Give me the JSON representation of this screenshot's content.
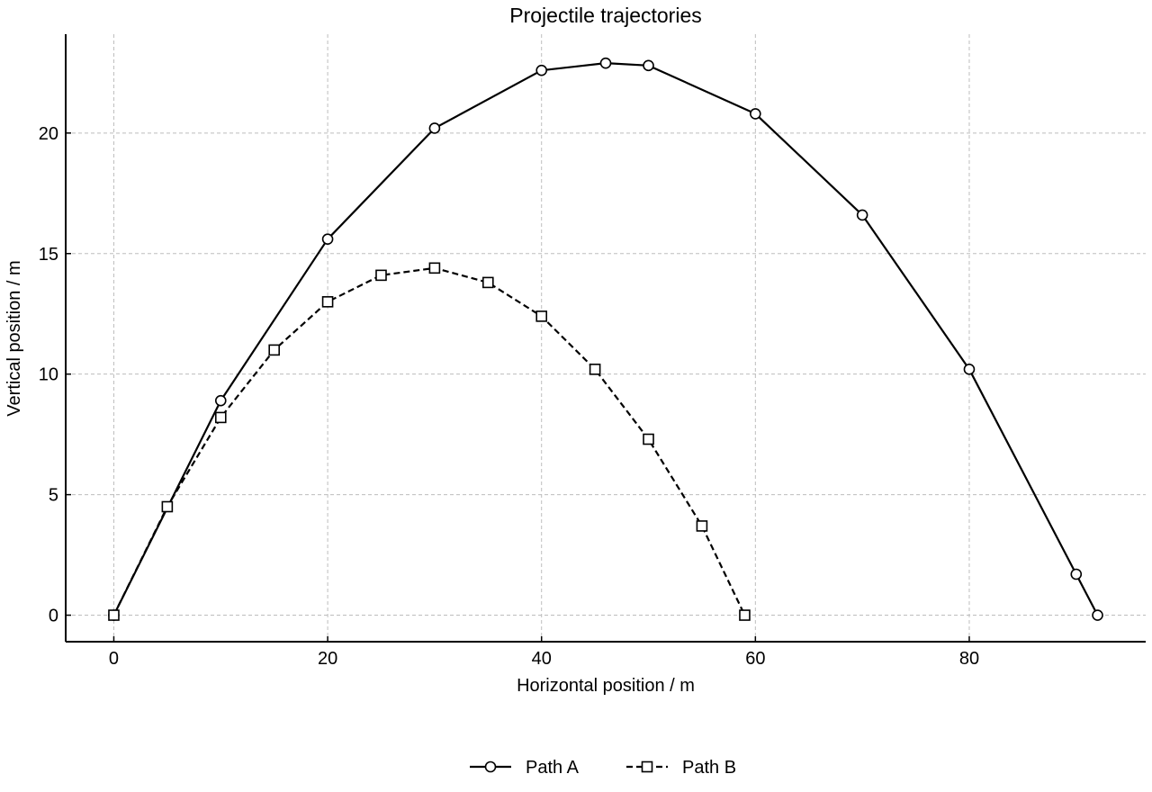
{
  "chart_data": {
    "type": "line",
    "title": "Projectile trajectories",
    "xlabel": "Horizontal position / m",
    "ylabel": "Vertical position / m",
    "xlim": [
      -4.5,
      96.5
    ],
    "ylim": [
      -1.1,
      24.1
    ],
    "xticks": [
      0,
      20,
      40,
      60,
      80
    ],
    "yticks": [
      0,
      5,
      10,
      15,
      20
    ],
    "grid": true,
    "legend_position": "bottom-center",
    "series": [
      {
        "name": "Path A",
        "marker": "circle",
        "line_style": "solid",
        "color": "#000000",
        "x": [
          0,
          10,
          20,
          30,
          40,
          46,
          50,
          60,
          70,
          80,
          90,
          92
        ],
        "y": [
          0,
          8.9,
          15.6,
          20.2,
          22.6,
          22.9,
          22.8,
          20.8,
          16.6,
          10.2,
          1.7,
          0
        ]
      },
      {
        "name": "Path B",
        "marker": "square",
        "line_style": "dashed",
        "color": "#000000",
        "x": [
          0,
          5,
          10,
          15,
          20,
          25,
          30,
          35,
          40,
          45,
          50,
          55,
          59
        ],
        "y": [
          0,
          4.5,
          8.2,
          11.0,
          13.0,
          14.1,
          14.4,
          13.8,
          12.4,
          10.2,
          7.3,
          3.7,
          0
        ]
      }
    ]
  }
}
